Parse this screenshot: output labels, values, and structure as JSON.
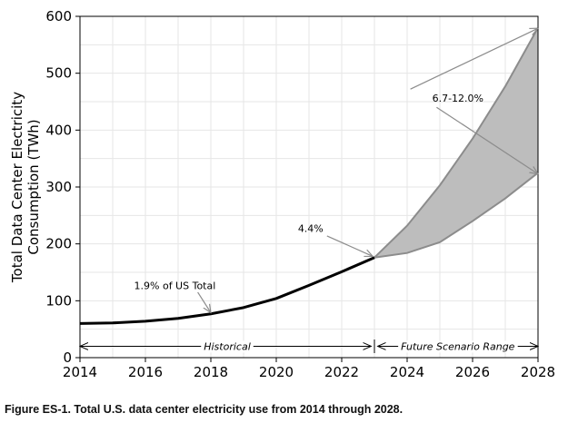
{
  "chart_data": {
    "type": "area",
    "ylabel_line1": "Total Data Center Electricity",
    "ylabel_line2": "Consumption (TWh)",
    "xlim": [
      2014,
      2028
    ],
    "ylim": [
      0,
      600
    ],
    "x_ticks": [
      2014,
      2016,
      2018,
      2020,
      2022,
      2024,
      2026,
      2028
    ],
    "y_ticks": [
      0,
      100,
      200,
      300,
      400,
      500,
      600
    ],
    "grid": true,
    "historical": {
      "x": [
        2014,
        2015,
        2016,
        2017,
        2018,
        2019,
        2020,
        2021,
        2022,
        2023
      ],
      "y": [
        60,
        61,
        64,
        69,
        77,
        88,
        104,
        127,
        151,
        176
      ]
    },
    "scenario_upper": {
      "x": [
        2023,
        2024,
        2025,
        2026,
        2027,
        2028
      ],
      "y": [
        176,
        232,
        303,
        385,
        477,
        580
      ]
    },
    "scenario_lower": {
      "x": [
        2023,
        2024,
        2025,
        2026,
        2027,
        2028
      ],
      "y": [
        176,
        184,
        203,
        240,
        280,
        325
      ]
    },
    "annotations": {
      "us_share_2018": "1.9% of US Total",
      "us_share_2023": "4.4%",
      "growth_range": "6.7-12.0%",
      "historical_label": "Historical",
      "future_label": "Future Scenario Range"
    },
    "colors": {
      "historical_line": "#000000",
      "range_fill": "#bdbdbd",
      "range_edge": "#8c8c8c",
      "arrow": "#8c8c8c",
      "grid": "#e6e6e6"
    }
  },
  "caption": "Figure ES-1. Total U.S. data center electricity use from 2014 through 2028."
}
